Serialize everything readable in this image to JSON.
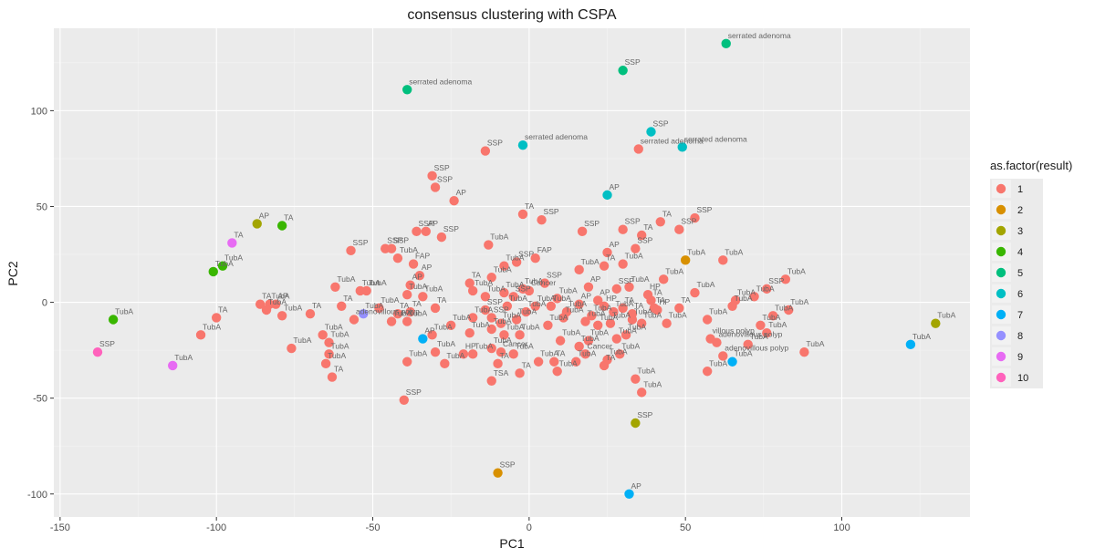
{
  "chart_data": {
    "type": "scatter",
    "title": "consensus clustering with CSPA",
    "xlabel": "PC1",
    "ylabel": "PC2",
    "xlim": [
      -152,
      141
    ],
    "ylim": [
      -112,
      143
    ],
    "x_ticks": [
      -150,
      -100,
      -50,
      0,
      50,
      100
    ],
    "y_ticks": [
      -100,
      -50,
      0,
      50,
      100
    ],
    "x_tick_labels": [
      "-150",
      "-100",
      "-50",
      "0",
      "50",
      "100"
    ],
    "y_tick_labels": [
      "-100",
      "-50",
      "0",
      "50",
      "100"
    ],
    "grid": true,
    "legend": {
      "title": "as.factor(result)",
      "position": "right",
      "entries": [
        {
          "name": "1",
          "color": "#F8766D"
        },
        {
          "name": "2",
          "color": "#D89000"
        },
        {
          "name": "3",
          "color": "#A3A500"
        },
        {
          "name": "4",
          "color": "#39B600"
        },
        {
          "name": "5",
          "color": "#00BF7D"
        },
        {
          "name": "6",
          "color": "#00BFC4"
        },
        {
          "name": "7",
          "color": "#00B0F6"
        },
        {
          "name": "8",
          "color": "#9590FF"
        },
        {
          "name": "9",
          "color": "#E76BF3"
        },
        {
          "name": "10",
          "color": "#FF62BC"
        }
      ]
    },
    "points": [
      {
        "x": 63,
        "y": 135,
        "cluster": 5,
        "label": "serrated adenoma"
      },
      {
        "x": 30,
        "y": 121,
        "cluster": 5,
        "label": "SSP"
      },
      {
        "x": -39,
        "y": 111,
        "cluster": 5,
        "label": "serrated adenoma"
      },
      {
        "x": 39,
        "y": 89,
        "cluster": 6,
        "label": "SSP"
      },
      {
        "x": -2,
        "y": 82,
        "cluster": 6,
        "label": "serrated adenoma"
      },
      {
        "x": 49,
        "y": 81,
        "cluster": 6,
        "label": "serrated adenoma"
      },
      {
        "x": 35,
        "y": 80,
        "cluster": 1,
        "label": "serrated adenoma"
      },
      {
        "x": -14,
        "y": 79,
        "cluster": 1,
        "label": "SSP"
      },
      {
        "x": -31,
        "y": 66,
        "cluster": 1,
        "label": "SSP"
      },
      {
        "x": -30,
        "y": 60,
        "cluster": 1,
        "label": "SSP"
      },
      {
        "x": -24,
        "y": 53,
        "cluster": 1,
        "label": "AP"
      },
      {
        "x": 25,
        "y": 56,
        "cluster": 6,
        "label": "AP"
      },
      {
        "x": -2,
        "y": 46,
        "cluster": 1,
        "label": "TA"
      },
      {
        "x": 4,
        "y": 43,
        "cluster": 1,
        "label": "SSP"
      },
      {
        "x": 53,
        "y": 44,
        "cluster": 1,
        "label": "SSP"
      },
      {
        "x": 42,
        "y": 42,
        "cluster": 1,
        "label": "TA"
      },
      {
        "x": 48,
        "y": 38,
        "cluster": 1,
        "label": "SSP"
      },
      {
        "x": 30,
        "y": 38,
        "cluster": 1,
        "label": "SSP"
      },
      {
        "x": 17,
        "y": 37,
        "cluster": 1,
        "label": "SSP"
      },
      {
        "x": 36,
        "y": 35,
        "cluster": 1,
        "label": "TA"
      },
      {
        "x": -36,
        "y": 37,
        "cluster": 1,
        "label": "SSP"
      },
      {
        "x": -33,
        "y": 37,
        "cluster": 1,
        "label": "AP"
      },
      {
        "x": -28,
        "y": 34,
        "cluster": 1,
        "label": "SSP"
      },
      {
        "x": -13,
        "y": 30,
        "cluster": 1,
        "label": "TubA"
      },
      {
        "x": 34,
        "y": 28,
        "cluster": 1,
        "label": "SSP"
      },
      {
        "x": 25,
        "y": 26,
        "cluster": 1,
        "label": "AP"
      },
      {
        "x": -46,
        "y": 28,
        "cluster": 1,
        "label": "SSP"
      },
      {
        "x": -44,
        "y": 28,
        "cluster": 1,
        "label": "SSP"
      },
      {
        "x": -57,
        "y": 27,
        "cluster": 1,
        "label": "SSP"
      },
      {
        "x": -42,
        "y": 23,
        "cluster": 1,
        "label": "TubA"
      },
      {
        "x": 2,
        "y": 23,
        "cluster": 1,
        "label": "FAP"
      },
      {
        "x": 62,
        "y": 22,
        "cluster": 1,
        "label": "TubA"
      },
      {
        "x": 50,
        "y": 22,
        "cluster": 2,
        "label": "TubA"
      },
      {
        "x": -4,
        "y": 21,
        "cluster": 1,
        "label": "SSP"
      },
      {
        "x": -37,
        "y": 20,
        "cluster": 1,
        "label": "FAP"
      },
      {
        "x": 30,
        "y": 20,
        "cluster": 1,
        "label": "TubA"
      },
      {
        "x": -8,
        "y": 19,
        "cluster": 1,
        "label": "TubA"
      },
      {
        "x": 24,
        "y": 19,
        "cluster": 1,
        "label": "TA"
      },
      {
        "x": 16,
        "y": 17,
        "cluster": 1,
        "label": "TubA"
      },
      {
        "x": -35,
        "y": 14,
        "cluster": 1,
        "label": "AP"
      },
      {
        "x": 43,
        "y": 12,
        "cluster": 1,
        "label": "TubA"
      },
      {
        "x": 82,
        "y": 12,
        "cluster": 1,
        "label": "TubA"
      },
      {
        "x": -12,
        "y": 13,
        "cluster": 1,
        "label": "TubA"
      },
      {
        "x": -19,
        "y": 10,
        "cluster": 1,
        "label": "TA"
      },
      {
        "x": 5,
        "y": 10,
        "cluster": 1,
        "label": "SSP"
      },
      {
        "x": -38,
        "y": 9,
        "cluster": 1,
        "label": "AP"
      },
      {
        "x": -62,
        "y": 8,
        "cluster": 1,
        "label": "TubA"
      },
      {
        "x": -54,
        "y": 6,
        "cluster": 1,
        "label": "TubA"
      },
      {
        "x": -52,
        "y": 6,
        "cluster": 1,
        "label": "TubA"
      },
      {
        "x": -18,
        "y": 6,
        "cluster": 1,
        "label": "TubA"
      },
      {
        "x": -8,
        "y": 5,
        "cluster": 1,
        "label": "TubA"
      },
      {
        "x": -2,
        "y": 7,
        "cluster": 1,
        "label": "TubA"
      },
      {
        "x": 0,
        "y": 6,
        "cluster": 1,
        "label": "Cancer"
      },
      {
        "x": 19,
        "y": 8,
        "cluster": 1,
        "label": "AP"
      },
      {
        "x": 28,
        "y": 7,
        "cluster": 1,
        "label": "SSP"
      },
      {
        "x": 32,
        "y": 8,
        "cluster": 1,
        "label": "TubA"
      },
      {
        "x": 38,
        "y": 4,
        "cluster": 1,
        "label": "HP"
      },
      {
        "x": 53,
        "y": 5,
        "cluster": 1,
        "label": "TubA"
      },
      {
        "x": 76,
        "y": 7,
        "cluster": 1,
        "label": "SSP"
      },
      {
        "x": -39,
        "y": 4,
        "cluster": 1,
        "label": "TubA"
      },
      {
        "x": -34,
        "y": 3,
        "cluster": 1,
        "label": "TubA"
      },
      {
        "x": -14,
        "y": 3,
        "cluster": 1,
        "label": "TubA"
      },
      {
        "x": -5,
        "y": 3,
        "cluster": 1,
        "label": "SSP"
      },
      {
        "x": 9,
        "y": 2,
        "cluster": 1,
        "label": "TubA"
      },
      {
        "x": 22,
        "y": 1,
        "cluster": 1,
        "label": "AP"
      },
      {
        "x": 39,
        "y": 1,
        "cluster": 1,
        "label": "TA"
      },
      {
        "x": 66,
        "y": 1,
        "cluster": 1,
        "label": "TubA"
      },
      {
        "x": 72,
        "y": 3,
        "cluster": 1,
        "label": "TubA"
      },
      {
        "x": -86,
        "y": -1,
        "cluster": 1,
        "label": "TA"
      },
      {
        "x": -83,
        "y": -1,
        "cluster": 1,
        "label": "TubA"
      },
      {
        "x": -81,
        "y": -1,
        "cluster": 1,
        "label": "AP"
      },
      {
        "x": -84,
        "y": -4,
        "cluster": 1,
        "label": "TubA"
      },
      {
        "x": -79,
        "y": -7,
        "cluster": 1,
        "label": "TubA"
      },
      {
        "x": -60,
        "y": -2,
        "cluster": 1,
        "label": "TA"
      },
      {
        "x": -48,
        "y": -3,
        "cluster": 1,
        "label": "TubA"
      },
      {
        "x": -42,
        "y": -6,
        "cluster": 1,
        "label": "TA"
      },
      {
        "x": -38,
        "y": -5,
        "cluster": 1,
        "label": "TA"
      },
      {
        "x": -30,
        "y": -3,
        "cluster": 1,
        "label": "TA"
      },
      {
        "x": -7,
        "y": -2,
        "cluster": 1,
        "label": "TubA"
      },
      {
        "x": 2,
        "y": -2,
        "cluster": 1,
        "label": "TubA"
      },
      {
        "x": 7,
        "y": -2,
        "cluster": 1,
        "label": "TubA"
      },
      {
        "x": 16,
        "y": -1,
        "cluster": 1,
        "label": "AP"
      },
      {
        "x": 24,
        "y": -2,
        "cluster": 1,
        "label": "HP"
      },
      {
        "x": 30,
        "y": -3,
        "cluster": 1,
        "label": "TA"
      },
      {
        "x": 40,
        "y": -3,
        "cluster": 1,
        "label": "TA"
      },
      {
        "x": 48,
        "y": -3,
        "cluster": 1,
        "label": "TA"
      },
      {
        "x": 65,
        "y": -2,
        "cluster": 1,
        "label": "TubA"
      },
      {
        "x": 78,
        "y": -7,
        "cluster": 1,
        "label": "TubA"
      },
      {
        "x": 83,
        "y": -4,
        "cluster": 1,
        "label": "TubA"
      },
      {
        "x": -100,
        "y": -8,
        "cluster": 1,
        "label": "TA"
      },
      {
        "x": -56,
        "y": -9,
        "cluster": 1,
        "label": "adenovillous polyp"
      },
      {
        "x": -44,
        "y": -10,
        "cluster": 1,
        "label": "TubA"
      },
      {
        "x": -39,
        "y": -10,
        "cluster": 1,
        "label": "TubA"
      },
      {
        "x": -25,
        "y": -12,
        "cluster": 1,
        "label": "TubA"
      },
      {
        "x": -18,
        "y": -8,
        "cluster": 1,
        "label": "TubA"
      },
      {
        "x": -12,
        "y": -8,
        "cluster": 1,
        "label": "SSP"
      },
      {
        "x": -9,
        "y": -11,
        "cluster": 1,
        "label": "TubA"
      },
      {
        "x": -4,
        "y": -9,
        "cluster": 1,
        "label": "TubA"
      },
      {
        "x": 6,
        "y": -12,
        "cluster": 1,
        "label": "TubA"
      },
      {
        "x": 11,
        "y": -8,
        "cluster": 1,
        "label": "TubA"
      },
      {
        "x": 18,
        "y": -10,
        "cluster": 1,
        "label": "TubA"
      },
      {
        "x": 22,
        "y": -12,
        "cluster": 1,
        "label": "TubA"
      },
      {
        "x": 26,
        "y": -11,
        "cluster": 1,
        "label": "TubA"
      },
      {
        "x": 33,
        "y": -9,
        "cluster": 1,
        "label": "TubA"
      },
      {
        "x": 36,
        "y": -11,
        "cluster": 1,
        "label": "TubA"
      },
      {
        "x": 44,
        "y": -11,
        "cluster": 1,
        "label": "TubA"
      },
      {
        "x": 57,
        "y": -9,
        "cluster": 1,
        "label": "TubA"
      },
      {
        "x": 74,
        "y": -12,
        "cluster": 1,
        "label": "TubA"
      },
      {
        "x": -105,
        "y": -17,
        "cluster": 1,
        "label": "TubA"
      },
      {
        "x": -66,
        "y": -17,
        "cluster": 1,
        "label": "TubA"
      },
      {
        "x": -64,
        "y": -21,
        "cluster": 1,
        "label": "TubA"
      },
      {
        "x": -76,
        "y": -24,
        "cluster": 1,
        "label": "TubA"
      },
      {
        "x": -31,
        "y": -17,
        "cluster": 1,
        "label": "TubA"
      },
      {
        "x": -19,
        "y": -16,
        "cluster": 1,
        "label": "TubA"
      },
      {
        "x": -12,
        "y": -14,
        "cluster": 1,
        "label": "TubA"
      },
      {
        "x": -8,
        "y": -17,
        "cluster": 1,
        "label": "TubA"
      },
      {
        "x": -3,
        "y": -17,
        "cluster": 1,
        "label": "TubA"
      },
      {
        "x": 10,
        "y": -20,
        "cluster": 1,
        "label": "TubA"
      },
      {
        "x": 16,
        "y": -23,
        "cluster": 1,
        "label": "TubA"
      },
      {
        "x": 19,
        "y": -20,
        "cluster": 1,
        "label": "TubA"
      },
      {
        "x": 28,
        "y": -19,
        "cluster": 1,
        "label": "TubA"
      },
      {
        "x": 31,
        "y": -17,
        "cluster": 1,
        "label": "TubA"
      },
      {
        "x": 58,
        "y": -19,
        "cluster": 1,
        "label": "villous polyp"
      },
      {
        "x": 60,
        "y": -21,
        "cluster": 1,
        "label": "adenovillous polyp"
      },
      {
        "x": 70,
        "y": -22,
        "cluster": 1,
        "label": "TubA"
      },
      {
        "x": 76,
        "y": -16,
        "cluster": 1,
        "label": "TubA"
      },
      {
        "x": -64,
        "y": -27,
        "cluster": 1,
        "label": "TubA"
      },
      {
        "x": -65,
        "y": -32,
        "cluster": 1,
        "label": "TubA"
      },
      {
        "x": -39,
        "y": -31,
        "cluster": 1,
        "label": "TubA"
      },
      {
        "x": -30,
        "y": -26,
        "cluster": 1,
        "label": "TubA"
      },
      {
        "x": -27,
        "y": -32,
        "cluster": 1,
        "label": "TubA"
      },
      {
        "x": -21,
        "y": -27,
        "cluster": 1,
        "label": "HP"
      },
      {
        "x": -18,
        "y": -27,
        "cluster": 1,
        "label": "TubA"
      },
      {
        "x": -12,
        "y": -24,
        "cluster": 1,
        "label": "TubA"
      },
      {
        "x": -9,
        "y": -26,
        "cluster": 1,
        "label": "Cancer"
      },
      {
        "x": -5,
        "y": -27,
        "cluster": 1,
        "label": "TubA"
      },
      {
        "x": 3,
        "y": -31,
        "cluster": 1,
        "label": "TubA"
      },
      {
        "x": 8,
        "y": -31,
        "cluster": 1,
        "label": "TA"
      },
      {
        "x": 9,
        "y": -36,
        "cluster": 1,
        "label": "TubA"
      },
      {
        "x": 15,
        "y": -31,
        "cluster": 1,
        "label": "TubA"
      },
      {
        "x": 18,
        "y": -27,
        "cluster": 1,
        "label": "Cancer"
      },
      {
        "x": 24,
        "y": -33,
        "cluster": 1,
        "label": "TA"
      },
      {
        "x": 25,
        "y": -30,
        "cluster": 1,
        "label": "TubA"
      },
      {
        "x": 29,
        "y": -27,
        "cluster": 1,
        "label": "TubA"
      },
      {
        "x": 36,
        "y": -47,
        "cluster": 1,
        "label": "TubA"
      },
      {
        "x": 57,
        "y": -36,
        "cluster": 1,
        "label": "TubA"
      },
      {
        "x": 62,
        "y": -28,
        "cluster": 1,
        "label": "adenovillous polyp"
      },
      {
        "x": 88,
        "y": -26,
        "cluster": 1,
        "label": "TubA"
      },
      {
        "x": -63,
        "y": -39,
        "cluster": 1,
        "label": "TA"
      },
      {
        "x": -12,
        "y": -41,
        "cluster": 1,
        "label": "TSA"
      },
      {
        "x": -10,
        "y": -32,
        "cluster": 1,
        "label": "TA"
      },
      {
        "x": -3,
        "y": -37,
        "cluster": 1,
        "label": "TA"
      },
      {
        "x": 34,
        "y": -40,
        "cluster": 1,
        "label": "TubA"
      },
      {
        "x": -40,
        "y": -51,
        "cluster": 1,
        "label": "SSP"
      },
      {
        "x": 41,
        "y": -4,
        "cluster": 1,
        "label": "HP"
      },
      {
        "x": 33,
        "y": -6,
        "cluster": 1,
        "label": "TA"
      },
      {
        "x": 27,
        "y": -5,
        "cluster": 1,
        "label": "TubA"
      },
      {
        "x": 20,
        "y": -7,
        "cluster": 1,
        "label": "TubA"
      },
      {
        "x": 12,
        "y": -5,
        "cluster": 1,
        "label": "TubA"
      },
      {
        "x": -1,
        "y": -5,
        "cluster": 1,
        "label": "TubA"
      },
      {
        "x": -14,
        "y": -4,
        "cluster": 1,
        "label": "SSP"
      },
      {
        "x": -70,
        "y": -6,
        "cluster": 1,
        "label": "TA"
      },
      {
        "x": 130,
        "y": -11,
        "cluster": 3,
        "label": "TubA"
      },
      {
        "x": -87,
        "y": 41,
        "cluster": 3,
        "label": "AP"
      },
      {
        "x": 34,
        "y": -63,
        "cluster": 3,
        "label": "SSP"
      },
      {
        "x": -10,
        "y": -89,
        "cluster": 2,
        "label": "SSP"
      },
      {
        "x": -79,
        "y": 40,
        "cluster": 4,
        "label": "TA"
      },
      {
        "x": -98,
        "y": 19,
        "cluster": 4,
        "label": "TubA"
      },
      {
        "x": -101,
        "y": 16,
        "cluster": 4,
        "label": "TubA"
      },
      {
        "x": -133,
        "y": -9,
        "cluster": 4,
        "label": "TubA"
      },
      {
        "x": -95,
        "y": 31,
        "cluster": 9,
        "label": "TA"
      },
      {
        "x": -114,
        "y": -33,
        "cluster": 9,
        "label": "TubA"
      },
      {
        "x": -138,
        "y": -26,
        "cluster": 10,
        "label": "SSP"
      },
      {
        "x": -53,
        "y": -6,
        "cluster": 8,
        "label": "TubA"
      },
      {
        "x": -34,
        "y": -19,
        "cluster": 7,
        "label": "AP"
      },
      {
        "x": 65,
        "y": -31,
        "cluster": 7,
        "label": "TubA"
      },
      {
        "x": 122,
        "y": -22,
        "cluster": 7,
        "label": "TubA"
      },
      {
        "x": 32,
        "y": -100,
        "cluster": 7,
        "label": "AP"
      }
    ]
  }
}
